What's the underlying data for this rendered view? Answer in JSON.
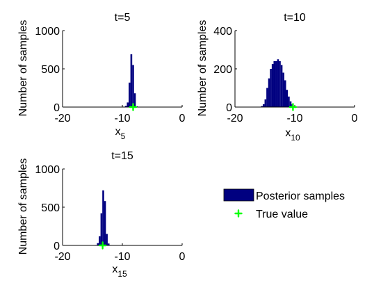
{
  "chart_data": [
    {
      "type": "bar",
      "title": "t=5",
      "xlabel": {
        "base": "x",
        "sub": "5"
      },
      "ylabel": "Number of samples",
      "xlim": [
        -20,
        0
      ],
      "ylim": [
        0,
        1000
      ],
      "xticks": [
        -20,
        -10,
        0
      ],
      "yticks": [
        0,
        500,
        1000
      ],
      "x": [
        -9.7,
        -9.4,
        -9.1,
        -8.8,
        -8.5,
        -8.2,
        -7.9,
        -7.6,
        -7.3
      ],
      "values": [
        5,
        15,
        60,
        320,
        690,
        550,
        180,
        10,
        2
      ],
      "true_value": -8.2
    },
    {
      "type": "bar",
      "title": "t=10",
      "xlabel": {
        "base": "x",
        "sub": "10"
      },
      "ylabel": "Number of samples",
      "xlim": [
        -20,
        0
      ],
      "ylim": [
        0,
        400
      ],
      "xticks": [
        -20,
        -10,
        0
      ],
      "yticks": [
        0,
        200,
        400
      ],
      "x": [
        -15.5,
        -15.2,
        -14.9,
        -14.6,
        -14.3,
        -14.0,
        -13.7,
        -13.4,
        -13.1,
        -12.8,
        -12.5,
        -12.2,
        -11.9,
        -11.6,
        -11.3,
        -11.0,
        -10.7,
        -10.4,
        -10.1,
        -9.8
      ],
      "values": [
        5,
        15,
        40,
        100,
        150,
        200,
        225,
        240,
        240,
        250,
        240,
        220,
        180,
        140,
        90,
        55,
        30,
        15,
        5,
        2
      ],
      "true_value": -10.3
    },
    {
      "type": "bar",
      "title": "t=15",
      "xlabel": {
        "base": "x",
        "sub": "15"
      },
      "ylabel": "Number of samples",
      "xlim": [
        -20,
        0
      ],
      "ylim": [
        0,
        1000
      ],
      "xticks": [
        -20,
        -10,
        0
      ],
      "yticks": [
        0,
        500,
        1000
      ],
      "x": [
        -14.4,
        -14.1,
        -13.8,
        -13.5,
        -13.2,
        -12.9,
        -12.6,
        -12.3,
        -12.0
      ],
      "values": [
        5,
        30,
        120,
        420,
        720,
        580,
        150,
        25,
        5
      ],
      "true_value": -13.3
    }
  ],
  "legend": {
    "items": [
      {
        "label": "Posterior samples",
        "kind": "bar"
      },
      {
        "label": "True value",
        "kind": "marker"
      }
    ]
  },
  "colors": {
    "bars": "#000080",
    "true_value": "#00ff00",
    "axis": "#000000"
  }
}
